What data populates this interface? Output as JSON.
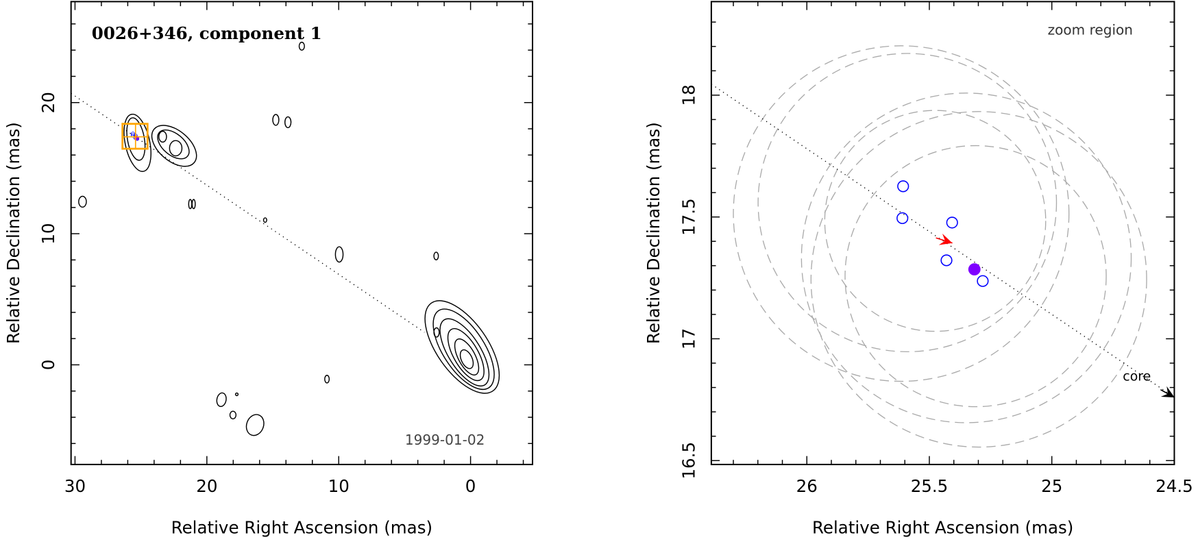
{
  "chart_data": [
    {
      "type": "contour",
      "title": "0026+346, component 1",
      "annotation": "1999-01-02",
      "xlabel": "Relative Right Ascension (mas)",
      "ylabel": "Relative Declination (mas)",
      "xlim": [
        30.3,
        -4.7
      ],
      "ylim": [
        -7.6,
        27.7
      ],
      "xticks": [
        30,
        20,
        10,
        0
      ],
      "xtick_labels": [
        "30",
        "20",
        "10",
        "0"
      ],
      "yticks": [
        20,
        10,
        0
      ],
      "ytick_labels": [
        "20",
        "10",
        "0"
      ],
      "minor_tick_step": 2,
      "grid": false,
      "contour_color": "#000000",
      "contours": [
        [
          0.64,
          1.36,
          4.07,
          1.92,
          55
        ],
        [
          0.52,
          1.19,
          3.49,
          1.57,
          57
        ],
        [
          0.46,
          0.95,
          2.91,
          1.22,
          58
        ],
        [
          0.35,
          0.78,
          2.21,
          0.93,
          60
        ],
        [
          0.29,
          0.6,
          1.51,
          0.64,
          62
        ],
        [
          0.29,
          0.43,
          0.76,
          0.41,
          65
        ],
        [
          2.58,
          2.47,
          0.35,
          0.2,
          90
        ],
        [
          25.26,
          16.93,
          2.21,
          0.93,
          78
        ],
        [
          25.38,
          17.22,
          1.63,
          0.64,
          80
        ],
        [
          22.48,
          16.7,
          1.98,
          1.16,
          40
        ],
        [
          22.54,
          16.81,
          1.4,
          0.81,
          40
        ],
        [
          22.36,
          16.52,
          0.58,
          0.47,
          90
        ],
        [
          23.35,
          17.4,
          0.41,
          0.29,
          90
        ],
        [
          29.43,
          12.44,
          0.41,
          0.29,
          90
        ],
        [
          21.26,
          12.26,
          0.35,
          0.12,
          90
        ],
        [
          21.0,
          12.26,
          0.35,
          0.12,
          90
        ],
        [
          14.77,
          18.68,
          0.41,
          0.23,
          90
        ],
        [
          13.85,
          18.5,
          0.41,
          0.23,
          90
        ],
        [
          9.96,
          8.42,
          0.58,
          0.29,
          90
        ],
        [
          2.61,
          8.3,
          0.29,
          0.17,
          90
        ],
        [
          10.89,
          -1.09,
          0.29,
          0.17,
          90
        ],
        [
          18.89,
          -2.66,
          0.52,
          0.35,
          100
        ],
        [
          18.02,
          -3.83,
          0.29,
          0.23,
          90
        ],
        [
          16.34,
          -4.59,
          0.81,
          0.64,
          110
        ],
        [
          15.58,
          11.04,
          0.17,
          0.12,
          90
        ],
        [
          17.73,
          -2.25,
          0.1,
          0.1,
          0
        ],
        [
          12.8,
          24.3,
          0.3,
          0.2,
          90
        ]
      ],
      "jet_axis": {
        "slope": 0.68,
        "intercept": 0.1,
        "ra_range": [
          30.3,
          3.5
        ]
      },
      "zoom_box": {
        "ra": [
          26.4,
          24.5
        ],
        "dec": [
          16.48,
          18.38
        ],
        "cross": [
          25.41,
          17.39
        ],
        "color": "#FFA500"
      }
    },
    {
      "type": "scatter",
      "annotation": "zoom region",
      "xlabel": "Relative Right Ascension (mas)",
      "ylabel": "Relative Declination (mas)",
      "xlim": [
        26.39,
        24.5
      ],
      "ylim": [
        16.484,
        18.384
      ],
      "xticks": [
        26,
        25.5,
        25,
        24.5
      ],
      "xtick_labels": [
        "26",
        "25.5",
        "25",
        "24.5"
      ],
      "yticks": [
        18,
        17.5,
        17,
        16.5
      ],
      "ytick_labels": [
        "18",
        "17.5",
        "17",
        "16.5"
      ],
      "minor_tick_step": 0.1,
      "grid": false,
      "open_points": {
        "color": "#0000FF",
        "x": [
          25.607,
          25.61,
          25.407,
          25.43,
          25.282
        ],
        "y": [
          17.626,
          17.495,
          17.477,
          17.322,
          17.237
        ]
      },
      "filled_point": {
        "color": "#7F00FF",
        "x": 25.316,
        "y": 17.285
      },
      "motion_arrow": {
        "color": "#FF0000",
        "from": [
          25.473,
          17.414
        ],
        "to": [
          25.406,
          17.393
        ]
      },
      "core_arrow": {
        "label": "core",
        "color": "#000000",
        "from": [
          24.556,
          16.791
        ],
        "to": [
          24.499,
          16.759
        ]
      },
      "error_circles": {
        "color": "#AAAAAA",
        "circles": [
          [
            25.615,
            17.514,
            0.685
          ],
          [
            25.59,
            17.559,
            0.609
          ],
          [
            25.349,
            17.332,
            0.673
          ],
          [
            25.476,
            17.484,
            0.451
          ],
          [
            25.311,
            17.257,
            0.533
          ],
          [
            25.298,
            17.244,
            0.685
          ]
        ]
      },
      "jet_axis": {
        "slope": 0.68,
        "intercept": 0.1
      }
    }
  ]
}
